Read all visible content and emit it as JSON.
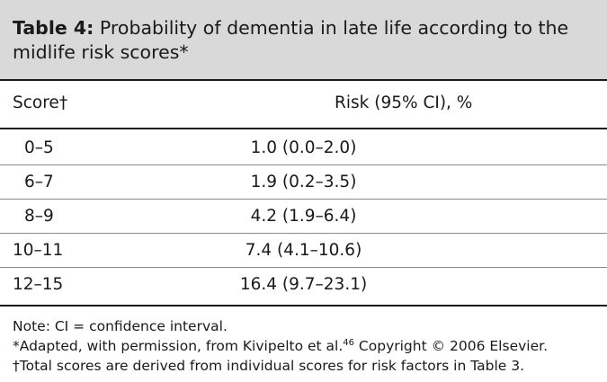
{
  "table": {
    "label": "Table 4:",
    "title": "Probability of dementia in late life according to the midlife risk scores*",
    "title_line1": "Probability of dementia in late life according to the",
    "title_line2": "midlife risk scores*",
    "header_bg": "#d9d9d9",
    "columns": {
      "score": "Score†",
      "risk": "Risk (95% CI), %"
    },
    "rows": [
      {
        "score": "0–5",
        "risk": "1.0 (0.0–2.0)"
      },
      {
        "score": "6–7",
        "risk": "1.9 (0.2–3.5)"
      },
      {
        "score": "8–9",
        "risk": "4.2 (1.9–6.4)"
      },
      {
        "score": "10–11",
        "risk": "7.4 (4.1–10.6)"
      },
      {
        "score": "12–15",
        "risk": "16.4 (9.7–23.1)"
      }
    ]
  },
  "footnotes": {
    "note": "Note: CI = confidence interval.",
    "adapted_pre": "*Adapted, with permission, from Kivipelto et al.",
    "adapted_ref": "46",
    "adapted_post": " Copyright © 2006 Elsevier.",
    "dagger": "†Total scores are derived from individual scores for risk factors in Table 3."
  }
}
